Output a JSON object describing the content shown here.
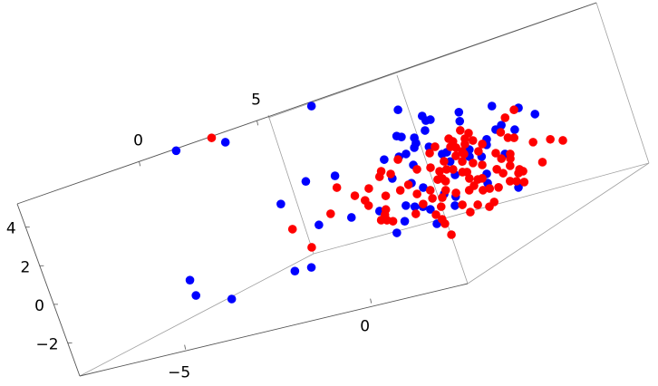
{
  "chart_data": {
    "type": "scatter",
    "dimensions": 3,
    "title": "",
    "xlabel": "",
    "ylabel": "",
    "zlabel": "",
    "xlim": [
      -7.85,
      2.6
    ],
    "ylim": [
      -5.2,
      5.4
    ],
    "zlim": [
      -3.7,
      5.2
    ],
    "x_ticks": [
      {
        "value": -5,
        "label": "−5"
      },
      {
        "value": 0,
        "label": "0"
      }
    ],
    "y_ticks": [
      {
        "value": 0,
        "label": "0"
      },
      {
        "value": 5,
        "label": "5"
      }
    ],
    "z_ticks": [
      {
        "value": 4,
        "label": "4"
      },
      {
        "value": 2,
        "label": "2"
      },
      {
        "value": 0,
        "label": "0"
      },
      {
        "value": -2,
        "label": "−2"
      }
    ],
    "boxed": true,
    "grid": false,
    "series": [
      {
        "color": "#0000ff",
        "points": [
          [
            -6.84,
            0,
            5.28
          ],
          [
            -5.55,
            0,
            5.1
          ],
          [
            -3.1,
            0,
            5.8
          ],
          [
            -7.67,
            0,
            -1.03
          ],
          [
            -7.66,
            0,
            -1.83
          ],
          [
            -6.81,
            0,
            -2.42
          ],
          [
            -5.0,
            0,
            -1.84
          ],
          [
            -4.56,
            0,
            -1.86
          ],
          [
            -4.74,
            0,
            1.51
          ],
          [
            -3.92,
            0,
            2.29
          ],
          [
            -3.15,
            0,
            2.21
          ],
          [
            -3.99,
            0,
            0.07
          ],
          [
            -3.12,
            0,
            0.04
          ],
          [
            -1.0,
            0,
            4.6
          ],
          [
            -0.46,
            0,
            4.02
          ],
          [
            -1.27,
            0,
            3.37
          ],
          [
            -1.16,
            0,
            3.27
          ],
          [
            -0.85,
            0,
            3.08
          ],
          [
            -0.86,
            0,
            2.8
          ],
          [
            -0.94,
            0,
            2.61
          ],
          [
            -1.2,
            0,
            2.41
          ],
          [
            -1.4,
            0,
            2.36
          ],
          [
            -1.79,
            0,
            2.4
          ],
          [
            -1.12,
            0,
            1.8
          ],
          [
            -1.76,
            0,
            1.41
          ],
          [
            -1.33,
            0,
            0.96
          ],
          [
            -1.08,
            0,
            0.61
          ],
          [
            -1.67,
            0,
            -0.04
          ],
          [
            -1.46,
            0,
            -0.2
          ],
          [
            -2.37,
            0,
            0.01
          ],
          [
            -1.84,
            0,
            -0.77
          ],
          [
            -2.14,
            0,
            -1.23
          ],
          [
            1.35,
            0,
            3.67
          ],
          [
            1.99,
            0,
            3.27
          ],
          [
            2.34,
            0,
            2.78
          ],
          [
            0.48,
            0,
            3.77
          ],
          [
            -0.29,
            0,
            3.75
          ],
          [
            -0.41,
            0,
            3.76
          ],
          [
            0.42,
            0,
            3.33
          ],
          [
            1.41,
            0,
            2.65
          ],
          [
            1.23,
            0,
            2.51
          ],
          [
            1.7,
            0,
            2.28
          ],
          [
            -0.52,
            0,
            3.3
          ],
          [
            0.92,
            0,
            2.15
          ],
          [
            0.87,
            0,
            1.89
          ],
          [
            -0.57,
            0,
            2.48
          ],
          [
            -0.18,
            0,
            2.01
          ],
          [
            0.4,
            0,
            1.87
          ],
          [
            1.24,
            0,
            1.24
          ],
          [
            0.64,
            0,
            1.39
          ],
          [
            -0.18,
            0,
            1.53
          ],
          [
            -0.31,
            0,
            1.98
          ],
          [
            0.34,
            0,
            1.53
          ],
          [
            -0.18,
            0,
            0.84
          ],
          [
            0.61,
            0,
            0.51
          ],
          [
            0.55,
            0,
            0.06
          ],
          [
            1.27,
            0,
            -0.51
          ],
          [
            -0.62,
            0,
            0.06
          ],
          [
            -0.36,
            0,
            -0.2
          ],
          [
            -1.26,
            0,
            -0.3
          ],
          [
            -1.1,
            0,
            -0.51
          ],
          [
            -0.46,
            0,
            -0.62
          ],
          [
            -1.07,
            0,
            -1.27
          ]
        ]
      },
      {
        "color": "#ff0000",
        "points": [
          [
            -5.85,
            0,
            5.47
          ],
          [
            -4.37,
            0,
            -0.91
          ],
          [
            -4.68,
            0,
            0.18
          ],
          [
            -3.21,
            0,
            1.63
          ],
          [
            -3.6,
            0,
            0.46
          ],
          [
            -1.45,
            0,
            2.24
          ],
          [
            -1.07,
            0,
            1.55
          ],
          [
            -1.97,
            0,
            1.88
          ],
          [
            -2.06,
            0,
            1.64
          ],
          [
            -1.76,
            0,
            1.64
          ],
          [
            -2.43,
            0,
            1.21
          ],
          [
            -2.84,
            0,
            1.03
          ],
          [
            -2.08,
            0,
            0.66
          ],
          [
            -1.67,
            0,
            0.75
          ],
          [
            -1.42,
            0,
            0.92
          ],
          [
            -1.29,
            0,
            0.38
          ],
          [
            -2.63,
            0,
            0.69
          ],
          [
            -2.59,
            0,
            0.4
          ],
          [
            -1.23,
            0,
            -0.17
          ],
          [
            -2.2,
            0,
            0.01
          ],
          [
            -2.27,
            0,
            -0.23
          ],
          [
            -2.41,
            0,
            -0.44
          ],
          [
            -2.27,
            0,
            -0.51
          ],
          [
            -2.13,
            0,
            -0.63
          ],
          [
            -1.5,
            0,
            -0.55
          ],
          [
            1.86,
            0,
            3.23
          ],
          [
            1.57,
            0,
            2.96
          ],
          [
            1.33,
            0,
            2.32
          ],
          [
            0.35,
            0,
            2.89
          ],
          [
            0.53,
            0,
            2.66
          ],
          [
            1.46,
            0,
            1.98
          ],
          [
            1.61,
            0,
            1.9
          ],
          [
            2.04,
            0,
            1.47
          ],
          [
            2.49,
            0,
            1.4
          ],
          [
            2.79,
            0,
            1.2
          ],
          [
            0.39,
            0,
            2.44
          ],
          [
            0.57,
            0,
            2.26
          ],
          [
            -0.01,
            0,
            2.63
          ],
          [
            0.07,
            0,
            2.45
          ],
          [
            0.77,
            0,
            1.98
          ],
          [
            0.34,
            0,
            2.18
          ],
          [
            -0.42,
            0,
            2.41
          ],
          [
            -0.04,
            0,
            2.22
          ],
          [
            0.09,
            0,
            2.12
          ],
          [
            0.21,
            0,
            1.87
          ],
          [
            0.61,
            0,
            1.68
          ],
          [
            -0.61,
            0,
            2.17
          ],
          [
            1.02,
            0,
            1.39
          ],
          [
            1.37,
            0,
            1.18
          ],
          [
            1.11,
            0,
            1.06
          ],
          [
            1.33,
            0,
            0.96
          ],
          [
            2.09,
            0,
            0.41
          ],
          [
            0.01,
            0,
            1.73
          ],
          [
            0.23,
            0,
            1.72
          ],
          [
            -0.33,
            0,
            1.61
          ],
          [
            0.12,
            0,
            1.39
          ],
          [
            0.37,
            0,
            1.19
          ],
          [
            0.58,
            0,
            0.99
          ],
          [
            -0.72,
            0,
            1.47
          ],
          [
            0.9,
            0,
            0.61
          ],
          [
            1.26,
            0,
            0.62
          ],
          [
            1.02,
            0,
            0.35
          ],
          [
            1.46,
            0,
            0.34
          ],
          [
            1.53,
            0,
            0.21
          ],
          [
            1.4,
            0,
            0.17
          ],
          [
            -0.53,
            0,
            1.19
          ],
          [
            -0.34,
            0,
            1.2
          ],
          [
            -0.18,
            0,
            1.12
          ],
          [
            0.03,
            0,
            0.88
          ],
          [
            0.14,
            0,
            0.83
          ],
          [
            -0.53,
            0,
            0.82
          ],
          [
            -0.47,
            0,
            0.65
          ],
          [
            -0.65,
            0,
            0.82
          ],
          [
            0.14,
            0,
            0.5
          ],
          [
            0.34,
            0,
            0.35
          ],
          [
            0.46,
            0,
            0.35
          ],
          [
            1.12,
            0,
            -0.11
          ],
          [
            1.28,
            0,
            -0.19
          ],
          [
            1.46,
            0,
            -0.32
          ],
          [
            0.78,
            0,
            -0.27
          ],
          [
            0.55,
            0,
            -0.22
          ],
          [
            0.37,
            0,
            -0.22
          ],
          [
            0.19,
            0,
            0.1
          ],
          [
            0.03,
            0,
            -0.06
          ],
          [
            -0.93,
            0,
            0.4
          ],
          [
            -0.55,
            0,
            0.22
          ],
          [
            -0.32,
            0,
            -0.03
          ],
          [
            -0.95,
            0,
            -0.01
          ],
          [
            -0.7,
            0,
            -0.09
          ],
          [
            -0.81,
            0,
            -0.51
          ],
          [
            -0.27,
            0,
            -0.67
          ],
          [
            0.11,
            0,
            -0.85
          ],
          [
            0.38,
            0,
            -1.08
          ],
          [
            0.54,
            0,
            -0.91
          ],
          [
            -0.14,
            0,
            -1.11
          ],
          [
            -1.01,
            0,
            -0.83
          ],
          [
            -0.9,
            0,
            -1.12
          ],
          [
            -0.87,
            0,
            -1.36
          ],
          [
            -0.81,
            0,
            -1.96
          ]
        ]
      }
    ]
  }
}
